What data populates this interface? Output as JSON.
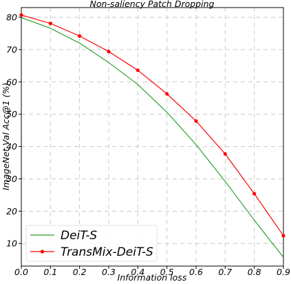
{
  "chart_data": {
    "type": "line",
    "title": "Non-saliency Patch Dropping",
    "xlabel": "Information loss",
    "ylabel": "ImageNet Val Acc@1 (%)",
    "xlim": [
      0.0,
      0.9
    ],
    "ylim": [
      3,
      83
    ],
    "xticks": [
      "0.0",
      "0.1",
      "0.2",
      "0.3",
      "0.4",
      "0.5",
      "0.6",
      "0.7",
      "0.8",
      "0.9"
    ],
    "yticks": [
      "10",
      "20",
      "30",
      "40",
      "50",
      "60",
      "70",
      "80"
    ],
    "x": [
      0.0,
      0.1,
      0.2,
      0.3,
      0.4,
      0.5,
      0.6,
      0.7,
      0.8,
      0.9
    ],
    "grid": true,
    "legend_position": "bottom-left",
    "series": [
      {
        "name": "DeiT-S",
        "color": "#2ca02c",
        "marker": "none",
        "values": [
          79.9,
          76.6,
          72.0,
          66.0,
          59.2,
          50.6,
          40.6,
          29.2,
          17.2,
          5.7
        ]
      },
      {
        "name": "TransMix-DeiT-S",
        "color": "#ff0000",
        "marker": "circle",
        "values": [
          80.7,
          78.1,
          74.2,
          69.4,
          63.6,
          56.3,
          47.9,
          37.7,
          25.4,
          12.4
        ]
      }
    ]
  }
}
